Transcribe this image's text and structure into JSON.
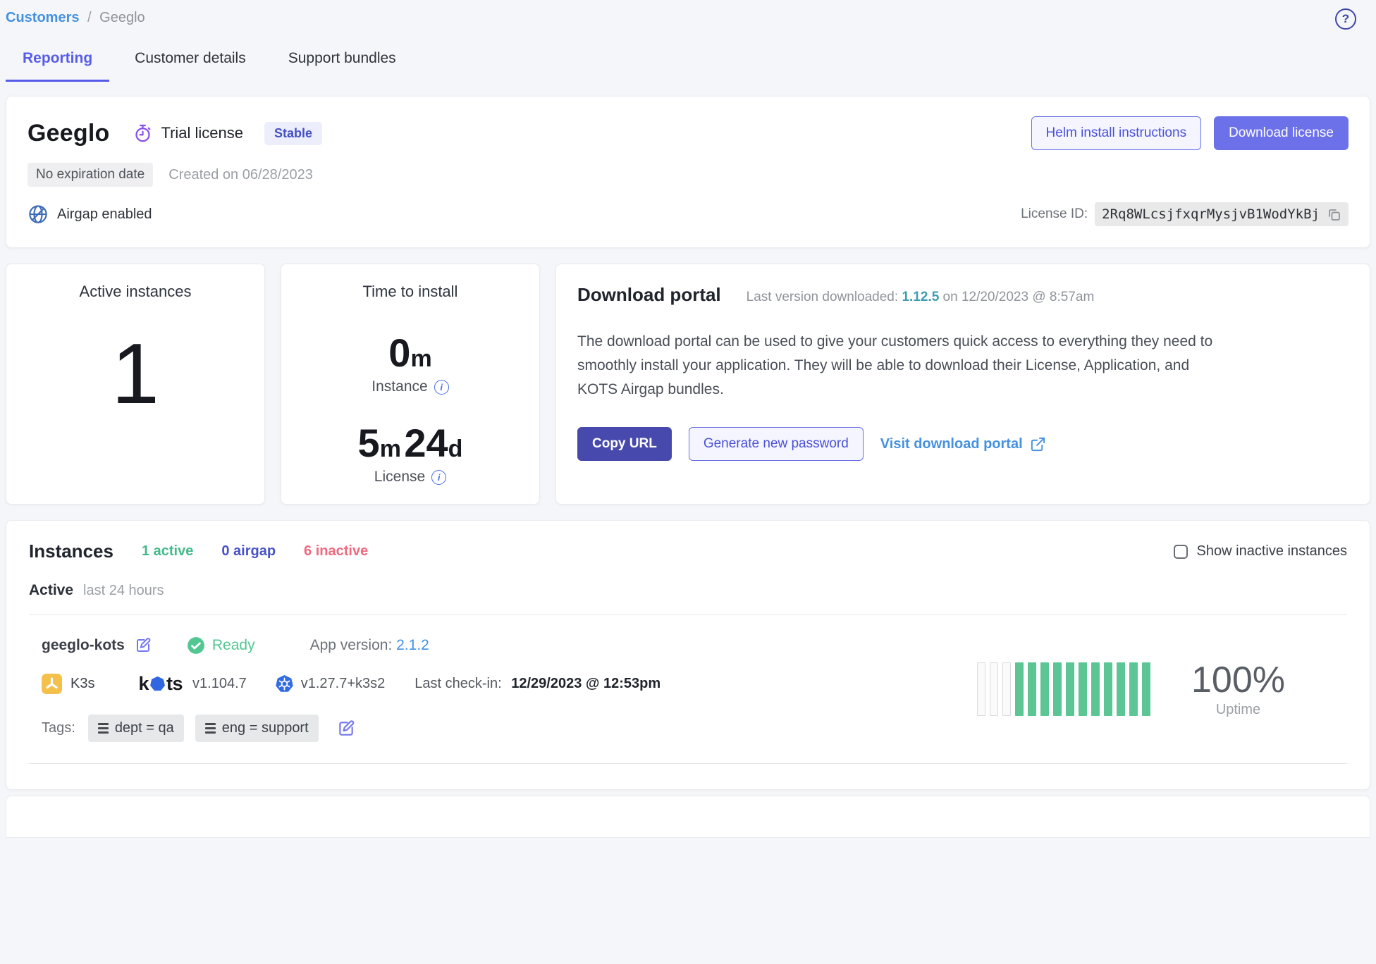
{
  "breadcrumb": {
    "root": "Customers",
    "separator": "/",
    "current": "Geeglo"
  },
  "tabs": [
    {
      "label": "Reporting",
      "active": true
    },
    {
      "label": "Customer details",
      "active": false
    },
    {
      "label": "Support bundles",
      "active": false
    }
  ],
  "customer": {
    "name": "Geeglo",
    "license_type": "Trial license",
    "channel_badge": "Stable",
    "expiration_badge": "No expiration date",
    "created": "Created on 06/28/2023",
    "airgap_label": "Airgap enabled",
    "helm_button": "Helm install instructions",
    "download_button": "Download license",
    "license_id_label": "License ID:",
    "license_id": "2Rq8WLcsjfxqrMysjvB1WodYkBj"
  },
  "active_instances": {
    "title": "Active instances",
    "value": "1"
  },
  "time_to_install": {
    "title": "Time to install",
    "instance_value": "0",
    "instance_unit": "m",
    "instance_label": "Instance",
    "license_value1": "5",
    "license_unit1": "m",
    "license_value2": "24",
    "license_unit2": "d",
    "license_label": "License"
  },
  "download_portal": {
    "title": "Download portal",
    "last_version_label": "Last version downloaded:",
    "last_version": "1.12.5",
    "last_version_date": " on 12/20/2023 @ 8:57am",
    "description": "The download portal can be used to give your customers quick access to everything they need to smoothly install your application. They will be able to download their License, Application, and KOTS Airgap bundles.",
    "copy_url_button": "Copy URL",
    "generate_password_button": "Generate new password",
    "visit_portal_link": "Visit download portal"
  },
  "instances": {
    "title": "Instances",
    "counts": [
      {
        "label": "1 active"
      },
      {
        "label": "0 airgap"
      },
      {
        "label": "6 inactive"
      }
    ],
    "show_inactive_label": "Show inactive instances",
    "section_label": "Active",
    "section_sub": "last 24 hours",
    "row": {
      "name": "geeglo-kots",
      "status": "Ready",
      "app_version_label": "App version: ",
      "app_version": "2.1.2",
      "distro": "K3s",
      "kots_k": "k",
      "kots_ts": "ts",
      "kots_version": "v1.104.7",
      "k8s_version": "v1.27.7+k3s2",
      "last_checkin_label": "Last check-in: ",
      "last_checkin": "12/29/2023 @ 12:53pm",
      "tags_label": "Tags:",
      "tags": [
        "dept = qa",
        "eng = support"
      ],
      "uptime_value": "100%",
      "uptime_label": "Uptime",
      "uptime_bars": [
        "empty",
        "empty",
        "empty",
        "up",
        "up",
        "up",
        "up",
        "up",
        "up",
        "up",
        "up",
        "up",
        "up",
        "up"
      ]
    }
  },
  "icons": {
    "help": "question-mark-icon",
    "trial": "stopwatch-icon",
    "airgap": "globe-slash-icon",
    "copy": "copy-icon",
    "info": "info-icon",
    "external": "external-link-icon",
    "ready": "check-circle-icon",
    "edit": "edit-pencil-icon",
    "k3s": "k3s-logo-icon",
    "kubernetes": "kubernetes-wheel-icon",
    "tag": "bars-icon"
  },
  "colors": {
    "accent_indigo": "#575ce8",
    "button_indigo": "#6d71e9",
    "button_dark_indigo": "#4749ac",
    "link_blue": "#4591e0",
    "teal_version": "#3d9db0",
    "green": "#52c792",
    "uptime_green": "#5bc694",
    "pink_inactive": "#f0697e",
    "purple_icon": "#8950e8",
    "page_bg": "#f5f6f9"
  }
}
